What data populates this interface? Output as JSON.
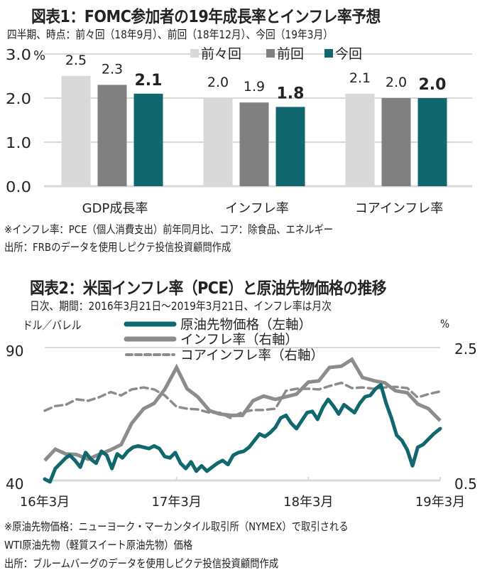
{
  "chart1": {
    "title": "図表1：FOMC参加者の19年成長率とインフレ率予想",
    "subtitle": "四半期、時点：前々回（18年9月）、前回（18年12月）、今回（19年3月）",
    "unit_label": "%",
    "footnote": "※インフレ率：PCE（個人消費支出）前年同月比、コア：除食品、エネルギー",
    "source": "出所：FRBのデータを使用しピクテ投信投資顧問作成"
  },
  "chart2": {
    "title": "図表2：米国インフレ率（PCE）と原油先物価格の推移",
    "subtitle": "日次、期間：2016年3月21日～2019年3月21日、インフレ率は月次",
    "left_unit": "ドル／バレル",
    "right_unit": "%",
    "footnote1": "※原油先物価格：ニューヨーク・マーカンタイル取引所（NYMEX）で取引される",
    "footnote2": "WTI原油先物（軽質スイート原油先物）価格",
    "source": "出所：ブルームバーグのデータを使用しピクテ投信投資顧問作成"
  },
  "colors": {
    "prev2": "#d9d9d9",
    "prev": "#808080",
    "current": "#10686e",
    "grid": "#d9d9d9",
    "inflation": "#8c8c8c",
    "core": "#8c8c8c",
    "oil": "#10686e"
  },
  "chart_data": [
    {
      "type": "bar",
      "title": "図表1：FOMC参加者の19年成長率とインフレ率予想",
      "categories": [
        "GDP成長率",
        "インフレ率",
        "コアインフレ率"
      ],
      "series": [
        {
          "name": "前々回",
          "values": [
            2.5,
            2.0,
            2.1
          ]
        },
        {
          "name": "前回",
          "values": [
            2.3,
            1.9,
            2.0
          ]
        },
        {
          "name": "今回",
          "values": [
            2.1,
            1.8,
            2.0
          ]
        }
      ],
      "yticks": [
        "0.0",
        "1.0",
        "2.0",
        "3.0"
      ],
      "ylim": [
        0,
        3.0
      ],
      "ylabel": "%",
      "legend": "top-right",
      "grid": true
    },
    {
      "type": "line",
      "title": "図表2：米国インフレ率（PCE）と原油先物価格の推移",
      "xticks": [
        "16年3月",
        "17年3月",
        "18年3月",
        "19年3月"
      ],
      "xlim": [
        2016.21,
        2019.21
      ],
      "left_axis": {
        "label": "ドル／バレル",
        "ylim": [
          40,
          90
        ],
        "ticks": [
          "40",
          "90"
        ]
      },
      "right_axis": {
        "label": "%",
        "ylim": [
          0.5,
          2.5
        ],
        "ticks": [
          "0.5",
          "2.5"
        ]
      },
      "legend": "top-center",
      "grid": true,
      "series": [
        {
          "name": "原油先物価格（左軸）",
          "axis": "left",
          "style": "solid-thick",
          "x": [
            2016.21,
            2016.25,
            2016.29,
            2016.33,
            2016.37,
            2016.4,
            2016.44,
            2016.48,
            2016.52,
            2016.56,
            2016.6,
            2016.64,
            2016.68,
            2016.72,
            2016.76,
            2016.8,
            2016.84,
            2016.88,
            2016.92,
            2016.96,
            2017.0,
            2017.04,
            2017.08,
            2017.12,
            2017.16,
            2017.2,
            2017.24,
            2017.28,
            2017.32,
            2017.36,
            2017.4,
            2017.44,
            2017.48,
            2017.52,
            2017.56,
            2017.6,
            2017.64,
            2017.68,
            2017.72,
            2017.76,
            2017.8,
            2017.84,
            2017.88,
            2017.92,
            2017.96,
            2018.0,
            2018.04,
            2018.08,
            2018.12,
            2018.16,
            2018.2,
            2018.24,
            2018.28,
            2018.32,
            2018.36,
            2018.4,
            2018.44,
            2018.48,
            2018.52,
            2018.56,
            2018.6,
            2018.64,
            2018.68,
            2018.72,
            2018.76,
            2018.8,
            2018.84,
            2018.88,
            2018.92,
            2018.96,
            2019.0,
            2019.04,
            2019.08,
            2019.12,
            2019.16,
            2019.21
          ],
          "values": [
            40.5,
            39.5,
            44.5,
            46.5,
            48.5,
            49.5,
            47.5,
            45.0,
            50.5,
            48.0,
            46.5,
            51.0,
            49.5,
            44.5,
            50.0,
            48.5,
            51.0,
            52.5,
            53.0,
            52.5,
            52.0,
            53.0,
            52.0,
            49.0,
            48.5,
            50.5,
            46.5,
            44.5,
            47.0,
            43.5,
            45.5,
            43.5,
            45.0,
            46.5,
            47.5,
            46.0,
            49.5,
            50.5,
            51.0,
            52.5,
            55.0,
            57.5,
            56.5,
            58.0,
            60.0,
            63.5,
            64.5,
            61.5,
            59.5,
            62.5,
            65.5,
            66.0,
            63.0,
            67.5,
            70.5,
            68.0,
            65.0,
            68.5,
            67.0,
            65.5,
            69.0,
            71.5,
            72.0,
            74.5,
            76.0,
            69.0,
            63.5,
            57.0,
            55.0,
            51.5,
            45.5,
            52.5,
            53.5,
            55.5,
            57.5,
            59.5
          ]
        },
        {
          "name": "インフレ率（右軸）",
          "axis": "right",
          "style": "solid",
          "x": [
            2016.21,
            2016.29,
            2016.37,
            2016.45,
            2016.54,
            2016.62,
            2016.71,
            2016.79,
            2016.87,
            2016.96,
            2017.04,
            2017.12,
            2017.21,
            2017.29,
            2017.37,
            2017.46,
            2017.54,
            2017.62,
            2017.71,
            2017.79,
            2017.87,
            2017.96,
            2018.04,
            2018.12,
            2018.21,
            2018.29,
            2018.37,
            2018.46,
            2018.54,
            2018.62,
            2018.71,
            2018.79,
            2018.87,
            2018.96,
            2019.04,
            2019.12,
            2019.21
          ],
          "values": [
            0.8,
            0.97,
            0.9,
            0.89,
            0.82,
            0.89,
            0.96,
            1.04,
            1.36,
            1.58,
            1.66,
            1.87,
            2.2,
            1.88,
            1.76,
            1.55,
            1.5,
            1.48,
            1.48,
            1.7,
            1.77,
            1.72,
            1.76,
            1.8,
            1.98,
            2.0,
            2.2,
            2.22,
            2.32,
            2.05,
            2.0,
            1.97,
            1.85,
            1.82,
            1.65,
            1.58,
            1.4
          ],
          "note": "values approximate"
        },
        {
          "name": "コアインフレ率（右軸）",
          "axis": "right",
          "style": "dashed",
          "x": [
            2016.21,
            2016.29,
            2016.37,
            2016.45,
            2016.54,
            2016.62,
            2016.71,
            2016.79,
            2016.87,
            2016.96,
            2017.04,
            2017.12,
            2017.21,
            2017.29,
            2017.37,
            2017.46,
            2017.54,
            2017.62,
            2017.71,
            2017.79,
            2017.87,
            2017.96,
            2018.04,
            2018.12,
            2018.21,
            2018.29,
            2018.37,
            2018.46,
            2018.54,
            2018.62,
            2018.71,
            2018.79,
            2018.87,
            2018.96,
            2019.04,
            2019.12,
            2019.21
          ],
          "values": [
            1.55,
            1.62,
            1.64,
            1.72,
            1.7,
            1.75,
            1.83,
            1.78,
            1.87,
            1.9,
            1.87,
            1.78,
            1.61,
            1.58,
            1.57,
            1.52,
            1.52,
            1.44,
            1.53,
            1.56,
            1.56,
            1.58,
            1.85,
            1.88,
            1.88,
            1.87,
            1.92,
            1.97,
            1.89,
            1.9,
            1.88,
            1.9,
            1.91,
            1.89,
            1.75,
            1.8,
            1.84
          ],
          "note": "values approximate"
        }
      ]
    }
  ]
}
